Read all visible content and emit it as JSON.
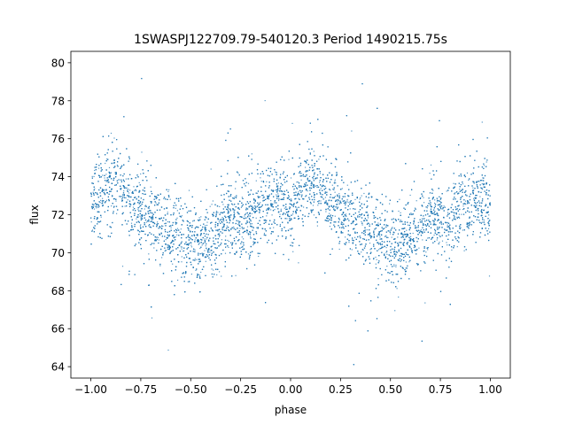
{
  "chart_data": {
    "type": "scatter",
    "title": "1SWASPJ122709.79-540120.3 Period 1490215.75s",
    "xlabel": "phase",
    "ylabel": "flux",
    "xlim": [
      -1.1,
      1.1
    ],
    "ylim": [
      63.4,
      80.6
    ],
    "xticks": [
      -1.0,
      -0.75,
      -0.5,
      -0.25,
      0.0,
      0.25,
      0.5,
      0.75,
      1.0
    ],
    "xtick_labels": [
      "−1.00",
      "−0.75",
      "−0.50",
      "−0.25",
      "0.00",
      "0.25",
      "0.50",
      "0.75",
      "1.00"
    ],
    "yticks": [
      64,
      66,
      68,
      70,
      72,
      74,
      76,
      78,
      80
    ],
    "ytick_labels": [
      "64",
      "66",
      "68",
      "70",
      "72",
      "74",
      "76",
      "78",
      "80"
    ],
    "grid": false,
    "legend": "none",
    "marker_color": "#1f77b4",
    "series": [
      {
        "profile_phase": [
          0.0,
          0.05,
          0.1,
          0.15,
          0.2,
          0.25,
          0.3,
          0.35,
          0.4,
          0.45,
          0.5,
          0.55,
          0.6,
          0.65,
          0.7,
          0.75,
          0.8,
          0.85,
          0.9,
          0.95,
          1.0
        ],
        "profile_flux": [
          72.4,
          73.0,
          73.6,
          73.4,
          72.7,
          72.2,
          71.8,
          71.5,
          71.2,
          70.9,
          70.5,
          70.3,
          70.8,
          71.3,
          71.8,
          71.7,
          71.8,
          72.3,
          72.6,
          72.8,
          72.4
        ],
        "typical_scatter": 1.0
      }
    ]
  }
}
